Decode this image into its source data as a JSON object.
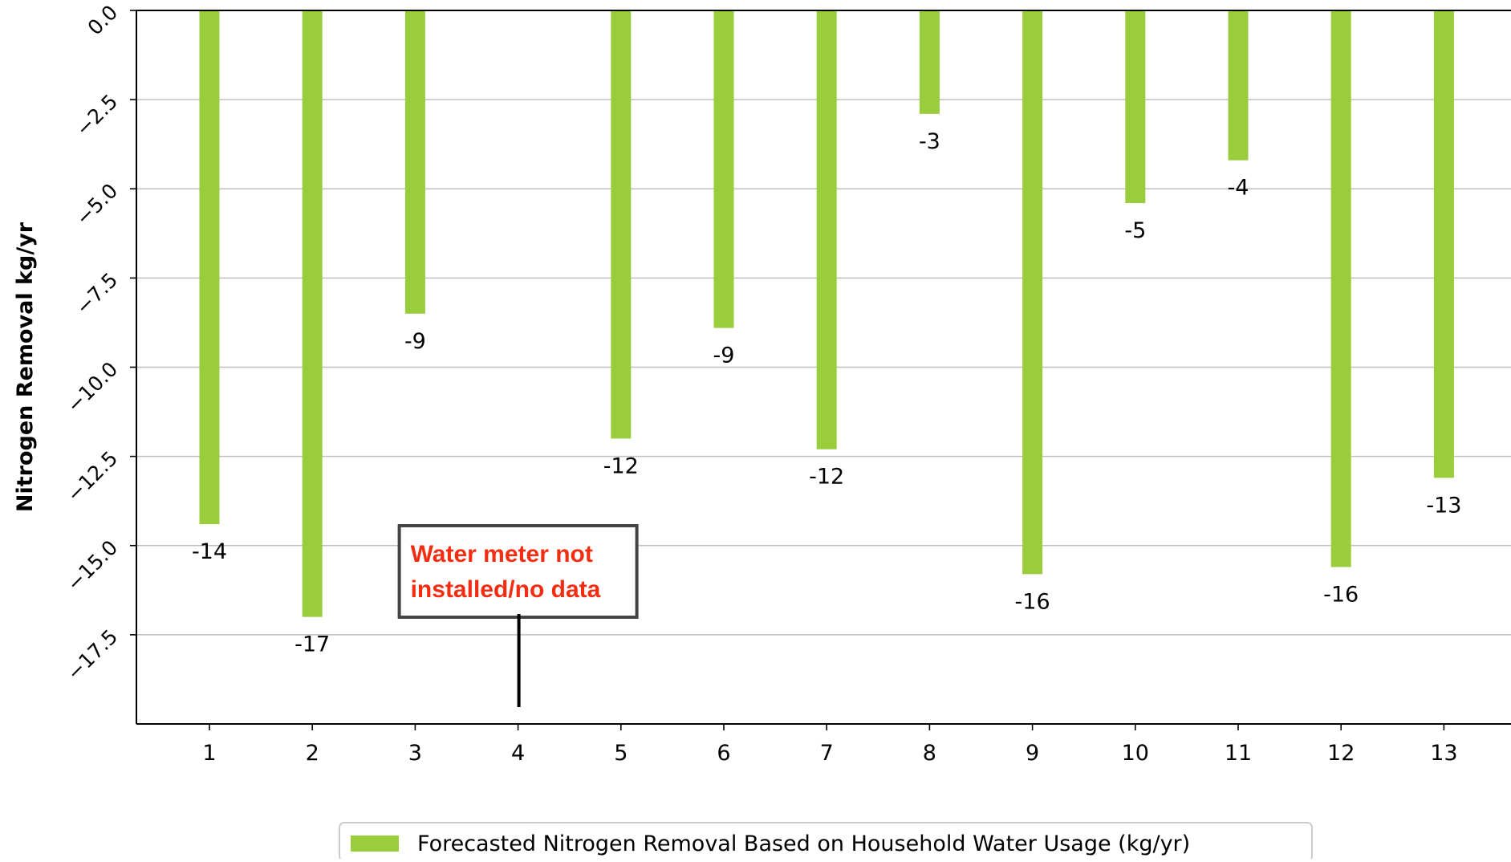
{
  "chart_data": {
    "type": "bar",
    "categories": [
      "1",
      "2",
      "3",
      "4",
      "5",
      "6",
      "7",
      "8",
      "9",
      "10",
      "11",
      "12",
      "13"
    ],
    "series": [
      {
        "name": "Forecasted Nitrogen Removal Based on Household Water Usage (kg/yr)",
        "values": [
          -14.4,
          -17.0,
          -8.5,
          null,
          -12.0,
          -8.9,
          -12.3,
          -2.9,
          -15.8,
          -5.4,
          -4.2,
          -15.6,
          -13.1
        ],
        "data_labels": [
          "-14",
          "-17",
          "-9",
          "",
          "-12",
          "-9",
          "-12",
          "-3",
          "-16",
          "-5",
          "-4",
          "-16",
          "-13"
        ],
        "color": "#9ACD3C"
      }
    ],
    "xlabel": "",
    "ylabel": "Nitrogen Removal kg/yr",
    "ylim": [
      -20.0,
      0.0
    ],
    "yticks": [
      0.0,
      -2.5,
      -5.0,
      -7.5,
      -10.0,
      -12.5,
      -15.0,
      -17.5
    ],
    "ytick_labels": [
      "0.0",
      "−2.5",
      "−5.0",
      "−7.5",
      "−10.0",
      "−12.5",
      "−15.0",
      "−17.5"
    ],
    "grid": "horizontal",
    "legend_position": "bottom-center",
    "annotation": {
      "category": "4",
      "lines": [
        "Water meter not",
        "installed/no data"
      ],
      "text_color": "#F42D12",
      "border_color": "#444444"
    },
    "colors": {
      "bar": "#9ACD3C",
      "grid": "#BFBFBF",
      "axis": "#000000"
    }
  }
}
